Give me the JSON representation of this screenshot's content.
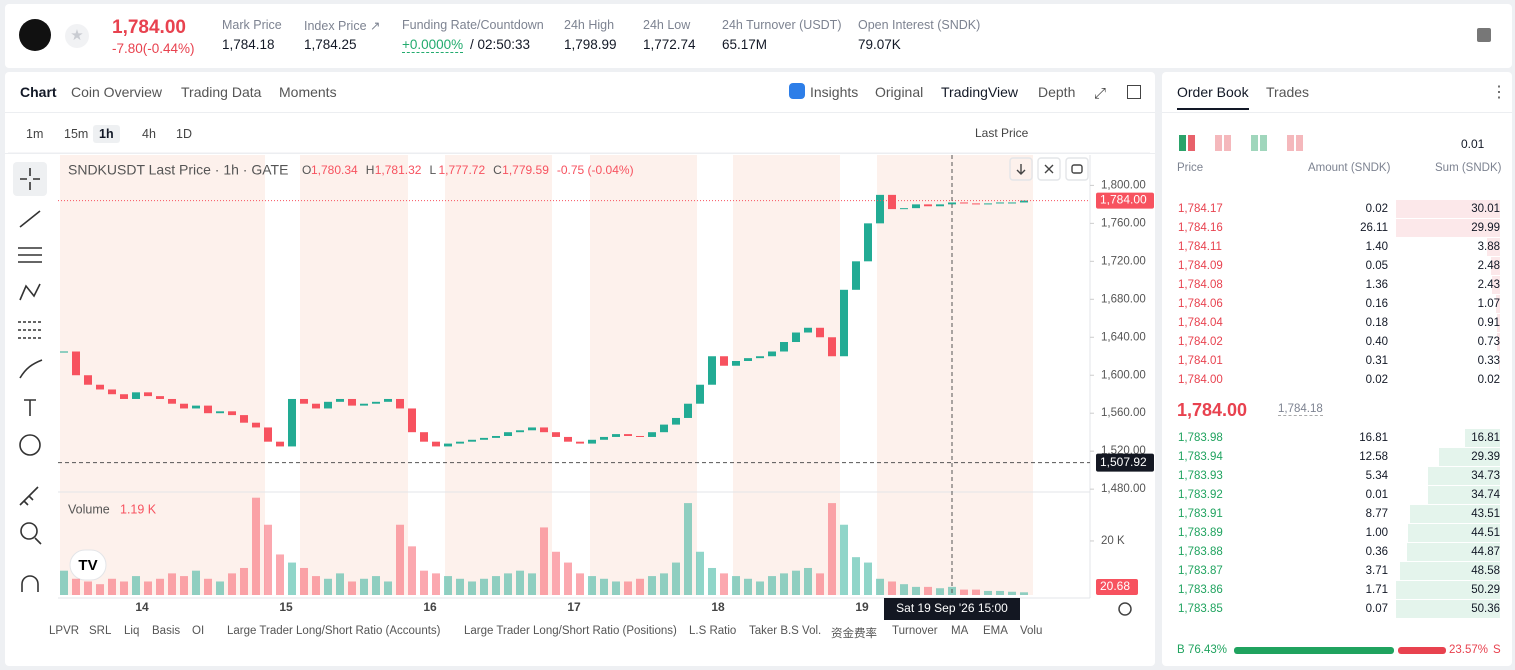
{
  "header": {
    "price": "1,784.00",
    "change": "-7.80(-0.44%)",
    "stats": [
      {
        "label": "Mark Price",
        "value": "1,784.18"
      },
      {
        "label": "Index Price ↗",
        "value": "1,784.25"
      },
      {
        "label": "Funding Rate/Countdown",
        "value": "+0.0000%",
        "extra": "/ 02:50:33"
      },
      {
        "label": "24h High",
        "value": "1,798.99"
      },
      {
        "label": "24h Low",
        "value": "1,772.74"
      },
      {
        "label": "24h Turnover (USDT)",
        "value": "65.17M"
      },
      {
        "label": "Open Interest (SNDK)",
        "value": "79.07K"
      }
    ]
  },
  "chart_tabs": [
    "Chart",
    "Coin Overview",
    "Trading Data",
    "Moments"
  ],
  "view_tabs": [
    "Insights",
    "Original",
    "TradingView",
    "Depth"
  ],
  "intervals": [
    "1m",
    "15m",
    "1h",
    "4h",
    "1D"
  ],
  "price_source": "Last Price",
  "indicators": [
    "LPVR",
    "SRL",
    "Liq",
    "Basis",
    "OI",
    "Large Trader Long/Short Ratio (Accounts)",
    "Large Trader Long/Short Ratio (Positions)",
    "L.S Ratio",
    "Taker B.S Vol.",
    "资金费率",
    "Turnover",
    "MA",
    "EMA",
    "Volu"
  ],
  "chart_data": {
    "type": "candlestick",
    "title": "SNDKUSDT Last Price · 1h · GATE",
    "ohlc": [
      {
        "k": "O",
        "v": "1,780.34"
      },
      {
        "k": "H",
        "v": "1,781.32"
      },
      {
        "k": "L",
        "v": "1,777.72"
      },
      {
        "k": "C",
        "v": "1,779.59"
      }
    ],
    "change": "-0.75 (-0.04%)",
    "close": [
      1625,
      1600,
      1590,
      1585,
      1580,
      1575,
      1582,
      1578,
      1575,
      1570,
      1565,
      1568,
      1560,
      1562,
      1558,
      1550,
      1545,
      1530,
      1525,
      1575,
      1570,
      1565,
      1572,
      1575,
      1568,
      1570,
      1572,
      1575,
      1565,
      1540,
      1530,
      1525,
      1528,
      1530,
      1532,
      1534,
      1536,
      1540,
      1542,
      1545,
      1540,
      1535,
      1530,
      1528,
      1532,
      1535,
      1538,
      1536,
      1535,
      1540,
      1548,
      1555,
      1570,
      1590,
      1620,
      1610,
      1615,
      1618,
      1620,
      1625,
      1635,
      1645,
      1650,
      1640,
      1620,
      1690,
      1720,
      1760,
      1790,
      1775,
      1776,
      1780,
      1778,
      1780,
      1782,
      1781,
      1780,
      1781,
      1782,
      1782,
      1784
    ],
    "up_color": "#22ab94",
    "down_color": "#f7525f",
    "xlim": [
      -0.5,
      85.5
    ],
    "xticks": [
      {
        "value": 6.5,
        "label": "14"
      },
      {
        "value": 18.5,
        "label": "15"
      },
      {
        "value": 30.5,
        "label": "16"
      },
      {
        "value": 42.5,
        "label": "17"
      },
      {
        "value": 54.5,
        "label": "18"
      },
      {
        "value": 66.5,
        "label": "19"
      }
    ],
    "ylim": [
      1477,
      1832
    ],
    "yticks": [
      {
        "value": 1480,
        "label": "1,480.00"
      },
      {
        "value": 1520,
        "label": "1,520.00"
      },
      {
        "value": 1560,
        "label": "1,560.00"
      },
      {
        "value": 1600,
        "label": "1,600.00"
      },
      {
        "value": 1640,
        "label": "1,640.00"
      },
      {
        "value": 1680,
        "label": "1,680.00"
      },
      {
        "value": 1720,
        "label": "1,720.00"
      },
      {
        "value": 1760,
        "label": "1,760.00"
      },
      {
        "value": 1800,
        "label": "1,800.00"
      }
    ],
    "last_price": {
      "value": 1784,
      "label": "1,784.00"
    },
    "crosshair": {
      "x": 74,
      "value": 1507.92,
      "label": "1,507.92",
      "time": "Sat 19 Sep '26 15:00"
    },
    "volume": {
      "name": "Volume",
      "current": "1.19 K",
      "ylim": [
        0,
        37000
      ],
      "yticks": [
        {
          "value": 20000,
          "label": "20 K"
        }
      ],
      "last": 20.68,
      "values": [
        9000,
        6000,
        5000,
        4000,
        6000,
        5000,
        7000,
        5000,
        6000,
        8000,
        7000,
        9000,
        6000,
        5000,
        8000,
        10000,
        36000,
        26000,
        15000,
        12000,
        10000,
        7000,
        6000,
        8000,
        5000,
        6000,
        7000,
        5000,
        26000,
        18000,
        9000,
        8000,
        7000,
        6000,
        5000,
        6000,
        7000,
        8000,
        9000,
        8000,
        25000,
        16000,
        12000,
        8000,
        7000,
        6000,
        5000,
        5000,
        6000,
        7000,
        8000,
        12000,
        34000,
        16000,
        10000,
        8000,
        7000,
        6000,
        5000,
        7000,
        8000,
        9000,
        10000,
        8000,
        34000,
        26000,
        14000,
        12000,
        6000,
        5000,
        4000,
        3000,
        3000,
        2500,
        3000,
        2000,
        2000,
        1500,
        1500,
        1200,
        1000
      ]
    }
  },
  "order_book": {
    "tabs": [
      "Order Book",
      "Trades"
    ],
    "precision": "0.01",
    "columns": [
      "Price",
      "Amount (SNDK)",
      "Sum (SNDK)"
    ],
    "asks": [
      [
        "1,784.17",
        "0.02",
        30.01
      ],
      [
        "1,784.16",
        "26.11",
        29.99
      ],
      [
        "1,784.11",
        "1.40",
        3.88
      ],
      [
        "1,784.09",
        "0.05",
        2.48
      ],
      [
        "1,784.08",
        "1.36",
        2.43
      ],
      [
        "1,784.06",
        "0.16",
        1.07
      ],
      [
        "1,784.04",
        "0.18",
        0.91
      ],
      [
        "1,784.02",
        "0.40",
        0.73
      ],
      [
        "1,784.01",
        "0.31",
        0.33
      ],
      [
        "1,784.00",
        "0.02",
        0.02
      ]
    ],
    "mid": "1,784.00",
    "mark": "1,784.18",
    "bids": [
      [
        "1,783.98",
        "16.81",
        16.81
      ],
      [
        "1,783.94",
        "12.58",
        29.39
      ],
      [
        "1,783.93",
        "5.34",
        34.73
      ],
      [
        "1,783.92",
        "0.01",
        34.74
      ],
      [
        "1,783.91",
        "8.77",
        43.51
      ],
      [
        "1,783.89",
        "1.00",
        44.51
      ],
      [
        "1,783.88",
        "0.36",
        44.87
      ],
      [
        "1,783.87",
        "3.71",
        48.58
      ],
      [
        "1,783.86",
        "1.71",
        50.29
      ],
      [
        "1,783.85",
        "0.07",
        50.36
      ]
    ],
    "buy_tag": "B",
    "buy": {
      "value": 76.43,
      "label": "76.43%"
    },
    "sell": {
      "value": 23.57,
      "label": "23.57%"
    },
    "sell_tag": "S"
  }
}
